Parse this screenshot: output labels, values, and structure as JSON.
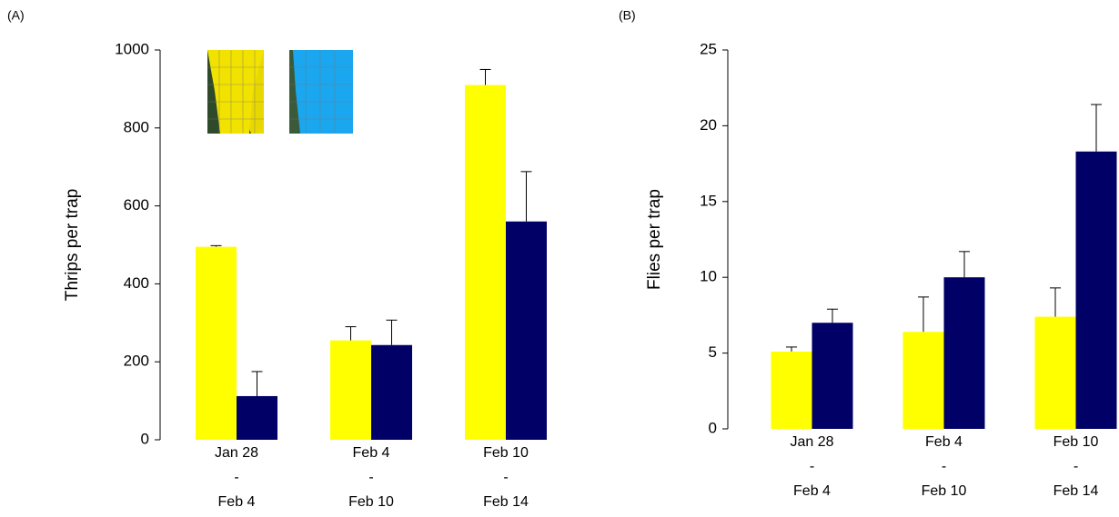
{
  "chart_data": [
    {
      "type": "bar",
      "label": "(A)",
      "ylabel": "Thrips per trap",
      "categories": [
        [
          "Jan 28",
          "-",
          "Feb 4"
        ],
        [
          "Feb 4",
          "-",
          "Feb 10"
        ],
        [
          "Feb 10",
          "-",
          "Feb 14"
        ]
      ],
      "series": [
        {
          "color": "#ffff00",
          "values": [
            495,
            255,
            910
          ],
          "errors": [
            3,
            35,
            40
          ]
        },
        {
          "color": "#000066",
          "values": [
            112,
            243,
            560
          ],
          "errors": [
            63,
            64,
            128
          ]
        }
      ],
      "ylim": [
        0,
        1000
      ],
      "yticks": [
        0,
        200,
        400,
        600,
        800,
        1000
      ]
    },
    {
      "type": "bar",
      "label": "(B)",
      "ylabel": "Flies per trap",
      "categories": [
        [
          "Jan 28",
          "-",
          "Feb 4"
        ],
        [
          "Feb 4",
          "-",
          "Feb 10"
        ],
        [
          "Feb 10",
          "-",
          "Feb 14"
        ]
      ],
      "series": [
        {
          "color": "#ffff00",
          "values": [
            5.1,
            6.4,
            7.4
          ],
          "errors": [
            0.3,
            2.3,
            1.9
          ]
        },
        {
          "color": "#000066",
          "values": [
            7.0,
            10.0,
            18.3
          ],
          "errors": [
            0.9,
            1.7,
            3.1
          ]
        }
      ],
      "ylim": [
        0,
        25
      ],
      "yticks": [
        0,
        5,
        10,
        15,
        20,
        25
      ]
    }
  ]
}
